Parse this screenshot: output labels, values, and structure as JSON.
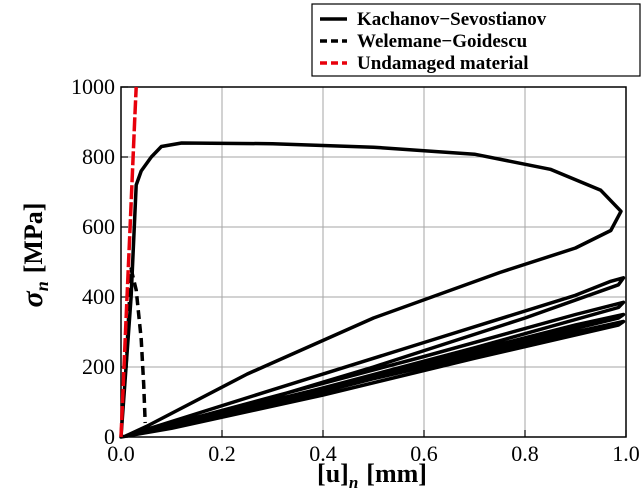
{
  "chart_data": {
    "type": "line",
    "xlabel": "[u]",
    "xlabel_sub": "n",
    "xlabel_unit": "[mm]",
    "ylabel": "σ",
    "ylabel_sub": "n",
    "ylabel_unit": "[MPa]",
    "xlim": [
      0,
      1.0
    ],
    "ylim": [
      0,
      1000
    ],
    "x_ticks": [
      0.0,
      0.2,
      0.4,
      0.6,
      0.8,
      1.0
    ],
    "x_tick_labels": [
      "0.0",
      "0.2",
      "0.4",
      "0.6",
      "0.8",
      "1.0"
    ],
    "y_ticks": [
      0,
      200,
      400,
      600,
      800,
      1000
    ],
    "y_tick_labels": [
      "0",
      "200",
      "400",
      "600",
      "800",
      "1000"
    ],
    "grid": true,
    "legend_position": "top-right",
    "series": [
      {
        "name": "Kachanov−Sevostianov",
        "color": "#000000",
        "dash": "solid",
        "points": [
          [
            0,
            0
          ],
          [
            0.02,
            400
          ],
          [
            0.03,
            720
          ],
          [
            0.04,
            760
          ],
          [
            0.06,
            800
          ],
          [
            0.08,
            830
          ],
          [
            0.12,
            840
          ],
          [
            0.3,
            838
          ],
          [
            0.5,
            828
          ],
          [
            0.7,
            808
          ],
          [
            0.85,
            765
          ],
          [
            0.95,
            705
          ],
          [
            0.99,
            645
          ],
          [
            0.97,
            590
          ],
          [
            0.9,
            540
          ],
          [
            0.75,
            470
          ],
          [
            0.5,
            340
          ],
          [
            0.25,
            180
          ],
          [
            0.05,
            30
          ],
          [
            0.01,
            3
          ],
          [
            0.3,
            135
          ],
          [
            0.6,
            270
          ],
          [
            0.9,
            405
          ],
          [
            0.97,
            445
          ],
          [
            0.995,
            455
          ],
          [
            0.985,
            435
          ],
          [
            0.8,
            340
          ],
          [
            0.5,
            200
          ],
          [
            0.2,
            70
          ],
          [
            0.02,
            6
          ],
          [
            0.3,
            115
          ],
          [
            0.6,
            230
          ],
          [
            0.9,
            350
          ],
          [
            0.995,
            385
          ],
          [
            0.985,
            370
          ],
          [
            0.7,
            255
          ],
          [
            0.4,
            140
          ],
          [
            0.1,
            30
          ],
          [
            0.02,
            5
          ],
          [
            0.3,
            105
          ],
          [
            0.6,
            210
          ],
          [
            0.9,
            320
          ],
          [
            0.995,
            350
          ],
          [
            0.985,
            340
          ],
          [
            0.7,
            240
          ],
          [
            0.4,
            130
          ],
          [
            0.1,
            28
          ],
          [
            0.02,
            5
          ],
          [
            0.3,
            100
          ],
          [
            0.6,
            200
          ],
          [
            0.9,
            300
          ],
          [
            0.995,
            330
          ],
          [
            0.985,
            320
          ],
          [
            0.7,
            225
          ],
          [
            0.4,
            120
          ],
          [
            0.1,
            25
          ],
          [
            0.0,
            0
          ]
        ]
      },
      {
        "name": "Welemane−Goidescu",
        "color": "#000000",
        "dash": "dashed",
        "points": [
          [
            0.01,
            200
          ],
          [
            0.02,
            480
          ],
          [
            0.03,
            420
          ],
          [
            0.04,
            280
          ],
          [
            0.045,
            150
          ],
          [
            0.048,
            40
          ]
        ]
      },
      {
        "name": "Undamaged material",
        "color": "#e8000b",
        "dash": "dashed",
        "points": [
          [
            0,
            0
          ],
          [
            0.009,
            300
          ],
          [
            0.018,
            600
          ],
          [
            0.027,
            900
          ],
          [
            0.03,
            1000
          ]
        ]
      }
    ]
  }
}
